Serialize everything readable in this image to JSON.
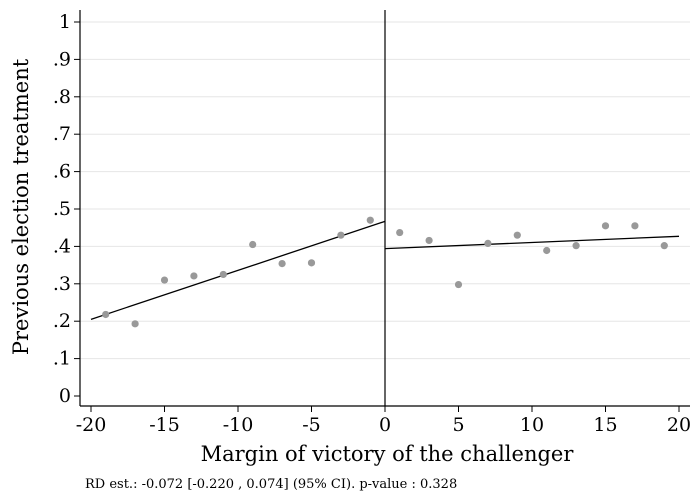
{
  "chart_data": {
    "type": "scatter",
    "xlabel": "Margin of victory of the challenger",
    "ylabel": "Previous election treatment",
    "note": "RD est.: -0.072 [-0.220 , 0.074] (95% CI). p-value : 0.328",
    "xlim": [
      -20,
      20
    ],
    "ylim": [
      0,
      1
    ],
    "x_ticks": [
      -20,
      -15,
      -10,
      -5,
      0,
      5,
      10,
      15,
      20
    ],
    "x_tick_labels": [
      "-20",
      "-15",
      "-10",
      "-5",
      "0",
      "5",
      "10",
      "15",
      "20"
    ],
    "y_ticks": [
      0,
      0.1,
      0.2,
      0.3,
      0.4,
      0.5,
      0.6,
      0.7,
      0.8,
      0.9,
      1
    ],
    "y_tick_labels": [
      "0",
      ".1",
      ".2",
      ".3",
      ".4",
      ".5",
      ".6",
      ".7",
      ".8",
      ".9",
      "1"
    ],
    "grid": "horizontal",
    "cutoff": 0,
    "points": [
      {
        "x": -19,
        "y": 0.218
      },
      {
        "x": -17,
        "y": 0.193
      },
      {
        "x": -15,
        "y": 0.31
      },
      {
        "x": -13,
        "y": 0.321
      },
      {
        "x": -11,
        "y": 0.325
      },
      {
        "x": -9,
        "y": 0.405
      },
      {
        "x": -7,
        "y": 0.354
      },
      {
        "x": -5,
        "y": 0.356
      },
      {
        "x": -3,
        "y": 0.43
      },
      {
        "x": -1,
        "y": 0.47
      },
      {
        "x": 1,
        "y": 0.437
      },
      {
        "x": 3,
        "y": 0.416
      },
      {
        "x": 5,
        "y": 0.298
      },
      {
        "x": 7,
        "y": 0.408
      },
      {
        "x": 9,
        "y": 0.43
      },
      {
        "x": 11,
        "y": 0.389
      },
      {
        "x": 13,
        "y": 0.402
      },
      {
        "x": 15,
        "y": 0.455
      },
      {
        "x": 17,
        "y": 0.455
      },
      {
        "x": 19,
        "y": 0.402
      }
    ],
    "fit_lines": [
      {
        "x": [
          -20,
          0
        ],
        "y": [
          0.205,
          0.467
        ]
      },
      {
        "x": [
          0,
          20
        ],
        "y": [
          0.394,
          0.427
        ]
      }
    ],
    "colors": {
      "points": "#999999",
      "lines": "#000000",
      "grid": "#e6e6e6"
    }
  }
}
